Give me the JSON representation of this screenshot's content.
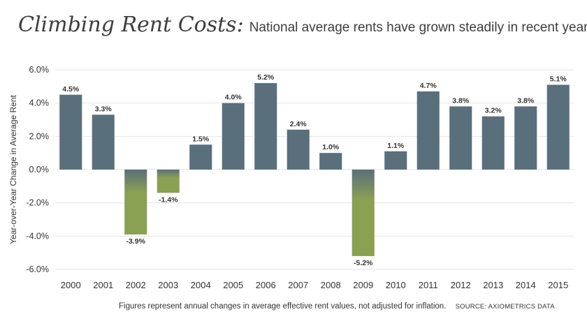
{
  "title": "Climbing Rent Costs:",
  "subtitle": "National average rents have grown steadily in recent years.",
  "footnote": "Figures represent annual changes in average effective rent values, not adjusted for inflation.",
  "source": "SOURCE: AXIOMETRICS DATA",
  "colors": {
    "positive": "#5a6f7c",
    "negative": "#8aa052",
    "grid": "#e6e6e6",
    "text": "#333333"
  },
  "chart_data": {
    "type": "bar",
    "categories": [
      "2000",
      "2001",
      "2002",
      "2003",
      "2004",
      "2005",
      "2006",
      "2007",
      "2008",
      "2009",
      "2010",
      "2011",
      "2012",
      "2013",
      "2014",
      "2015"
    ],
    "values": [
      4.5,
      3.3,
      -3.9,
      -1.4,
      1.5,
      4.0,
      5.2,
      2.4,
      1.0,
      -5.2,
      1.1,
      4.7,
      3.8,
      3.2,
      3.8,
      5.1
    ],
    "value_labels": [
      "4.5%",
      "3.3%",
      "-3.9%",
      "-1.4%",
      "1.5%",
      "4.0%",
      "5.2%",
      "2.4%",
      "1.0%",
      "-5.2%",
      "1.1%",
      "4.7%",
      "3.8%",
      "3.2%",
      "3.8%",
      "5.1%"
    ],
    "ylabel": "Year-over-Year Change in Average Rent",
    "ylim": [
      -6.0,
      6.0
    ],
    "yticks": [
      6.0,
      4.0,
      2.0,
      0.0,
      -2.0,
      -4.0,
      -6.0
    ],
    "ytick_labels": [
      "6.0%",
      "4.0%",
      "2.0%",
      "0.0%",
      "-2.0%",
      "-4.0%",
      "-6.0%"
    ],
    "grid": true
  }
}
